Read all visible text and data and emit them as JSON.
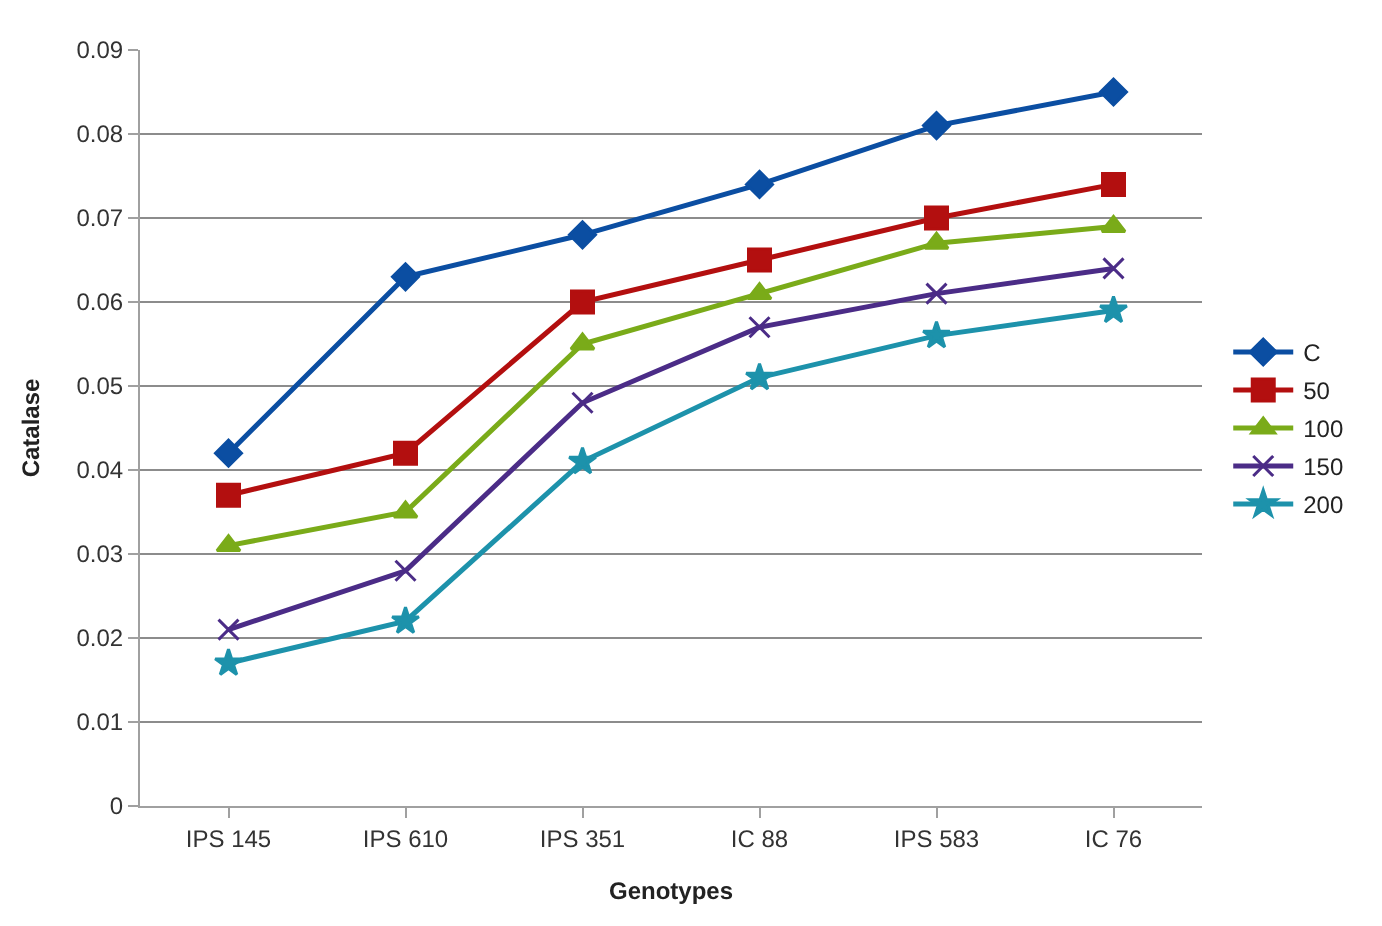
{
  "chart_data": {
    "type": "line",
    "xlabel": "Genotypes",
    "ylabel": "Catalase",
    "categories": [
      "IPS 145",
      "IPS 610",
      "IPS 351",
      "IC 88",
      "IPS 583",
      "IC 76"
    ],
    "series": [
      {
        "name": "C",
        "color": "#0b4ea2",
        "marker": "diamond",
        "values": [
          0.042,
          0.063,
          0.068,
          0.074,
          0.081,
          0.085
        ]
      },
      {
        "name": "50",
        "color": "#b30f0f",
        "marker": "square",
        "values": [
          0.037,
          0.042,
          0.06,
          0.065,
          0.07,
          0.074
        ]
      },
      {
        "name": "100",
        "color": "#7aab19",
        "marker": "triangle",
        "values": [
          0.031,
          0.035,
          0.055,
          0.061,
          0.067,
          0.069
        ]
      },
      {
        "name": "150",
        "color": "#4b2c87",
        "marker": "cross",
        "values": [
          0.021,
          0.028,
          0.048,
          0.057,
          0.061,
          0.064
        ]
      },
      {
        "name": "200",
        "color": "#1d92ab",
        "marker": "star",
        "values": [
          0.017,
          0.022,
          0.041,
          0.051,
          0.056,
          0.059
        ]
      }
    ],
    "ylim": [
      0,
      0.09
    ],
    "yticks": [
      0,
      0.01,
      0.02,
      0.03,
      0.04,
      0.05,
      0.06,
      0.07,
      0.08,
      0.09
    ],
    "grid": "y",
    "legend": "right"
  }
}
